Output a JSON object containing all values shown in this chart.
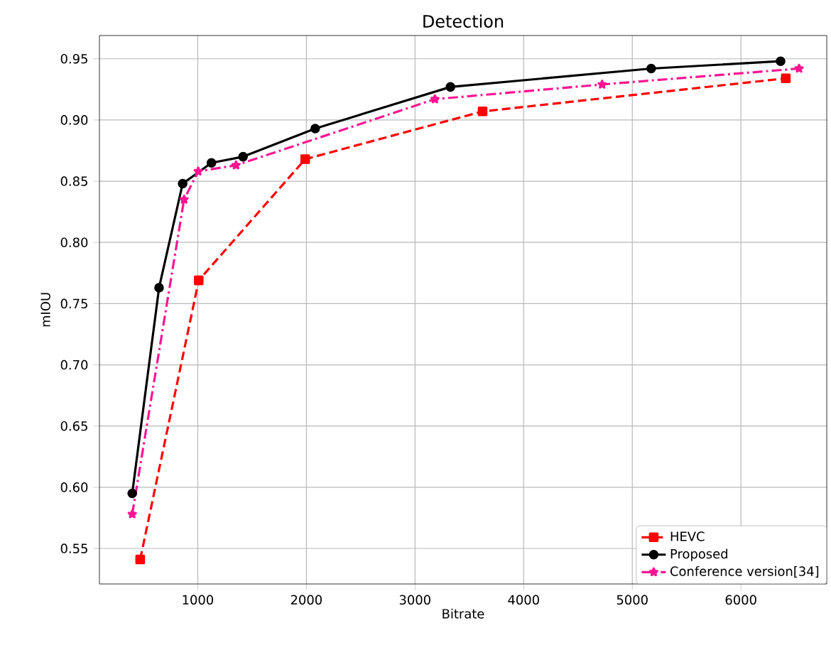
{
  "chart_data": {
    "type": "line",
    "title": "Detection",
    "xlabel": "Bitrate",
    "ylabel": "mIOU",
    "xlim": [
      95,
      6790
    ],
    "ylim": [
      0.521,
      0.969
    ],
    "xticks": [
      1000,
      2000,
      3000,
      4000,
      5000,
      6000
    ],
    "yticks": [
      {
        "value": 0.55,
        "label": "0.55"
      },
      {
        "value": 0.6,
        "label": "0.60"
      },
      {
        "value": 0.65,
        "label": "0.65"
      },
      {
        "value": 0.7,
        "label": "0.70"
      },
      {
        "value": 0.75,
        "label": "0.75"
      },
      {
        "value": 0.8,
        "label": "0.80"
      },
      {
        "value": 0.85,
        "label": "0.85"
      },
      {
        "value": 0.9,
        "label": "0.90"
      },
      {
        "value": 0.95,
        "label": "0.95"
      }
    ],
    "grid": true,
    "legend": "bottom right",
    "series": [
      {
        "name": "HEVC",
        "color": "#ff0000",
        "marker": "square",
        "line_style": "dashed",
        "x": [
          470,
          1009,
          1989,
          3622,
          6413
        ],
        "values": [
          0.541,
          0.769,
          0.868,
          0.907,
          0.934
        ]
      },
      {
        "name": "Proposed",
        "color": "#000000",
        "marker": "circle",
        "line_style": "solid",
        "x": [
          397,
          644,
          861,
          1126,
          1417,
          2081,
          3326,
          5174,
          6365
        ],
        "values": [
          0.595,
          0.763,
          0.848,
          0.865,
          0.87,
          0.893,
          0.927,
          0.942,
          0.948
        ]
      },
      {
        "name": "Conference version[34]",
        "color": "#ff1493",
        "marker": "star",
        "line_style": "dashdot",
        "x": [
          397,
          874,
          1004,
          1352,
          3183,
          4722,
          6535
        ],
        "values": [
          0.578,
          0.835,
          0.858,
          0.863,
          0.917,
          0.929,
          0.942
        ]
      }
    ]
  }
}
